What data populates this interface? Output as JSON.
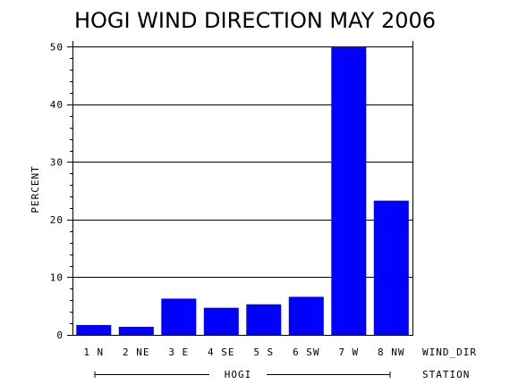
{
  "chart_data": {
    "type": "bar",
    "title": "HOGI WIND DIRECTION MAY 2006",
    "ylabel": "PERCENT",
    "xlabel": "WIND_DIR",
    "group_label": "HOGI",
    "group_axis_label": "STATION",
    "categories": [
      "1 N",
      "2 NE",
      "3 E",
      "4 SE",
      "5 S",
      "6 SW",
      "7 W",
      "8 NW"
    ],
    "values": [
      1.7,
      1.4,
      6.3,
      4.7,
      5.3,
      6.6,
      49.9,
      23.3
    ],
    "ylim": [
      0,
      51
    ],
    "yticks": [
      0,
      10,
      20,
      30,
      40,
      50
    ],
    "grid": true,
    "bar_color": "#0000ff"
  }
}
